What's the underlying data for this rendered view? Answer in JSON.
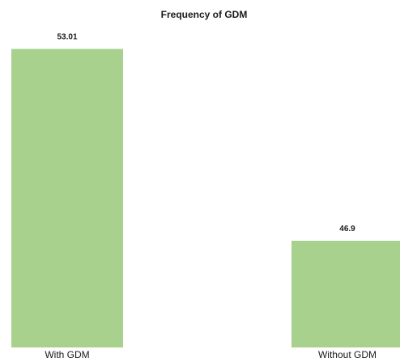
{
  "chart_data": {
    "type": "bar",
    "title": "Frequency of GDM",
    "categories": [
      "With GDM",
      "Without GDM"
    ],
    "values": [
      53.01,
      46.9
    ],
    "data_labels": [
      "53.01",
      "46.9"
    ],
    "xlabel": "",
    "ylabel": "",
    "ylim": [
      43.5,
      53.9
    ],
    "grid": false,
    "legend": "none",
    "bar_color": "#a9d18e"
  }
}
